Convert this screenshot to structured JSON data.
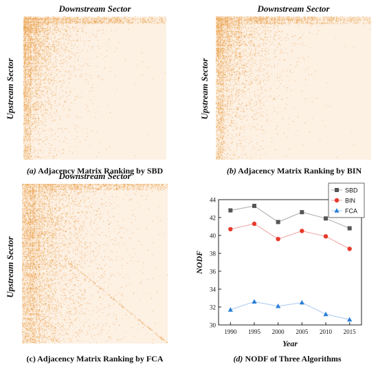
{
  "panels": [
    {
      "id": "a",
      "top_label": "Downstream Sector",
      "side_label": "Upstream Sector",
      "caption_prefix": "(a)",
      "caption_text": " Adjacency Matrix Ranking by SBD"
    },
    {
      "id": "b",
      "top_label": "Downstream Sector",
      "side_label": "Upstream Sector",
      "caption_prefix": "(b)",
      "caption_text": " Adjacency Matrix Ranking by BIN"
    },
    {
      "id": "c",
      "top_label": "Downstream Sector",
      "side_label": "Upstream Sector",
      "caption_prefix": "(c)",
      "caption_text": " Adjacency Matrix Ranking by FCA"
    },
    {
      "id": "d",
      "caption_prefix": "(d)",
      "caption_text": " NODF of Three Algorithms"
    }
  ],
  "colors": {
    "matrix_bg": "#fdf1e4",
    "matrix_fill": "#e8973a",
    "SBD": "#555555",
    "BIN": "#e8392b",
    "FCA": "#2a7fd6",
    "SBD_line": "#a8a8a8",
    "BIN_line": "#f0a0a0",
    "FCA_line": "#a8c8f0"
  },
  "chart_data": {
    "type": "line",
    "x": [
      1990,
      1995,
      2000,
      2005,
      2010,
      2015
    ],
    "xlabel": "Year",
    "ylabel": "NODF",
    "ylim": [
      30,
      44
    ],
    "yticks": [
      30,
      32,
      34,
      36,
      38,
      40,
      42,
      44
    ],
    "legend_position": "top-right",
    "series": [
      {
        "name": "SBD",
        "marker": "square",
        "values": [
          42.8,
          43.3,
          41.5,
          42.6,
          41.9,
          40.8
        ]
      },
      {
        "name": "BIN",
        "marker": "circle",
        "values": [
          40.7,
          41.3,
          39.6,
          40.5,
          39.9,
          38.5
        ]
      },
      {
        "name": "FCA",
        "marker": "triangle",
        "values": [
          31.7,
          32.6,
          32.1,
          32.5,
          31.2,
          30.6
        ]
      }
    ]
  }
}
